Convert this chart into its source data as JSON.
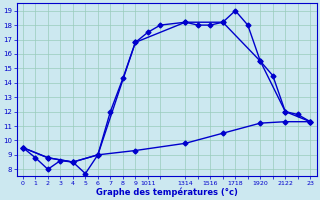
{
  "xlabel": "Graphe des températures (°c)",
  "bg_color": "#cce8f0",
  "plot_bg_color": "#cce8f0",
  "line_color": "#0000cc",
  "grid_color": "#99ccbb",
  "ylim": [
    7.5,
    19.5
  ],
  "yticks": [
    8,
    9,
    10,
    11,
    12,
    13,
    14,
    15,
    16,
    17,
    18,
    19
  ],
  "xtick_labels": [
    "0",
    "1",
    "2",
    "3",
    "4",
    "5",
    "6",
    "7",
    "8",
    "9",
    "1011",
    "",
    "1314",
    "",
    "1516",
    "",
    "1718",
    "",
    "1920",
    "",
    "2122",
    "",
    "23"
  ],
  "xtick_positions": [
    0,
    1,
    2,
    3,
    4,
    5,
    6,
    7,
    8,
    9,
    10,
    11,
    13,
    14,
    15,
    16,
    17,
    18,
    19,
    20,
    21,
    22,
    23
  ],
  "xlim": [
    -0.5,
    23.5
  ],
  "series1": {
    "x": [
      0,
      1,
      2,
      3,
      4,
      5,
      6,
      7,
      8,
      9,
      10,
      11,
      13,
      14,
      15,
      16,
      17,
      18,
      19,
      20,
      21,
      22,
      23
    ],
    "y": [
      9.5,
      8.8,
      8.0,
      8.6,
      8.5,
      7.7,
      9.0,
      12.0,
      14.3,
      16.8,
      17.5,
      18.0,
      18.2,
      18.0,
      18.0,
      18.2,
      19.0,
      18.0,
      15.5,
      14.5,
      12.0,
      11.8,
      11.3
    ]
  },
  "series2": {
    "x": [
      0,
      2,
      4,
      6,
      9,
      13,
      16,
      19,
      21,
      23
    ],
    "y": [
      9.5,
      8.8,
      8.5,
      9.0,
      16.8,
      18.2,
      18.2,
      15.5,
      12.0,
      11.3
    ]
  },
  "series3": {
    "x": [
      0,
      2,
      4,
      6,
      9,
      13,
      16,
      19,
      21,
      23
    ],
    "y": [
      9.5,
      8.8,
      8.5,
      9.0,
      9.3,
      9.8,
      10.5,
      11.2,
      11.3,
      11.3
    ]
  }
}
